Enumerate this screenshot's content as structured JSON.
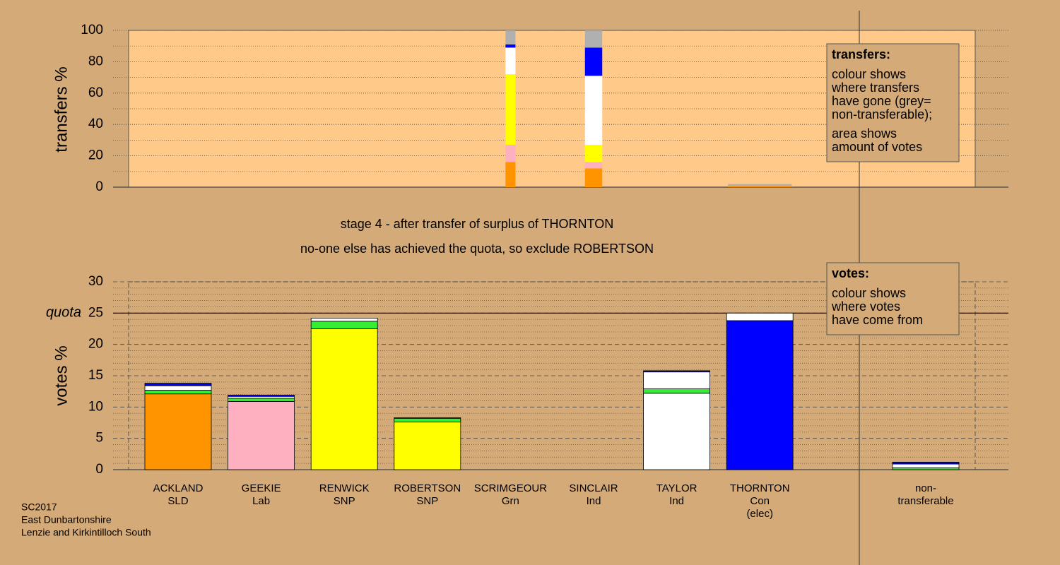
{
  "chart_data": [
    {
      "type": "stacked-bar",
      "axis_label": "transfers %",
      "categories": [
        [
          "ACKLAND",
          "SLD"
        ],
        [
          "GEEKIE",
          "Lab"
        ],
        [
          "RENWICK",
          "SNP"
        ],
        [
          "ROBERTSON",
          "SNP"
        ],
        [
          "SCRIMGEOUR",
          "Grn"
        ],
        [
          "SINCLAIR",
          "Ind"
        ],
        [
          "TAYLOR",
          "Ind"
        ],
        [
          "THORNTON",
          "Con",
          "(elec)"
        ],
        [
          "non-",
          "transferable"
        ]
      ],
      "widths": [
        0,
        0,
        0,
        0,
        0.15,
        0.26,
        0,
        0.96,
        0
      ],
      "series": [
        {
          "color": "#ff9400",
          "values": [
            0,
            0,
            0,
            0,
            16,
            12,
            0,
            1,
            0
          ]
        },
        {
          "color": "#ffb0c0",
          "values": [
            0,
            0,
            0,
            0,
            11,
            4,
            0,
            0,
            0
          ]
        },
        {
          "color": "#ffff00",
          "values": [
            0,
            0,
            0,
            0,
            45,
            11,
            0,
            0,
            0
          ]
        },
        {
          "color": "#ffffff",
          "values": [
            0,
            0,
            0,
            0,
            17,
            44,
            0,
            0,
            0
          ]
        },
        {
          "color": "#0000ff",
          "values": [
            0,
            0,
            0,
            0,
            2,
            18,
            0,
            0,
            0
          ]
        },
        {
          "color": "#b0b0b0",
          "values": [
            0,
            0,
            0,
            0,
            9,
            11,
            0,
            1,
            0
          ]
        }
      ],
      "ylim": [
        0,
        100
      ],
      "yticks": [
        0,
        20,
        40,
        60,
        80,
        100
      ],
      "yminor": [
        10,
        30,
        50,
        70,
        90
      ],
      "box": {
        "title": "transfers:",
        "lines": [
          "colour shows",
          "where transfers",
          "have gone (grey=",
          "non-transferable);",
          "area shows",
          "amount of votes"
        ]
      }
    },
    {
      "type": "stacked-bar",
      "axis_label": "votes %",
      "title": [
        "stage 4 - after transfer of surplus of THORNTON",
        "no-one else has achieved the quota, so exclude ROBERTSON"
      ],
      "series": [
        {
          "color": "#ff9400",
          "values": [
            12.1,
            0,
            0,
            0,
            0,
            0,
            0,
            0,
            0
          ]
        },
        {
          "color": "#ffb0c0",
          "values": [
            0,
            10.9,
            0,
            0,
            0,
            0,
            0,
            0,
            0
          ]
        },
        {
          "color": "#ffff00",
          "values": [
            0,
            0,
            22.5,
            7.6,
            0,
            0,
            0,
            0,
            0
          ]
        },
        {
          "color": "#ffffff",
          "values": [
            0,
            0,
            0,
            0,
            0,
            0,
            12.2,
            0,
            0
          ]
        },
        {
          "color": "#0000ff",
          "values": [
            0,
            0,
            0,
            0,
            0,
            0,
            0,
            23.8,
            0
          ]
        },
        {
          "color": "#33ee33",
          "values": [
            0.6,
            0.5,
            1.2,
            0.6,
            0,
            0,
            0.7,
            0,
            0.3
          ]
        },
        {
          "color": "#ffffff",
          "values": [
            0.7,
            0.3,
            0.5,
            0.1,
            0,
            0,
            2.7,
            1.2,
            0.6
          ]
        },
        {
          "color": "#0000ff",
          "values": [
            0.4,
            0.2,
            0,
            0,
            0,
            0,
            0.2,
            0,
            0.3
          ]
        }
      ],
      "quota": {
        "label": "quota",
        "value": 25
      },
      "ylim": [
        0,
        30
      ],
      "yticks": [
        0,
        5,
        10,
        15,
        20,
        25,
        30
      ],
      "yminor": [
        1,
        2,
        3,
        4,
        6,
        7,
        8,
        9,
        11,
        12,
        13,
        14,
        16,
        17,
        18,
        19,
        21,
        22,
        23,
        24,
        26,
        27,
        28,
        29
      ],
      "box": {
        "title": "votes:",
        "lines": [
          "colour shows",
          "where votes",
          "have come from"
        ]
      }
    }
  ],
  "footer": [
    "SC2017",
    "East Dunbartonshire",
    "Lenzie and Kirkintilloch South"
  ]
}
